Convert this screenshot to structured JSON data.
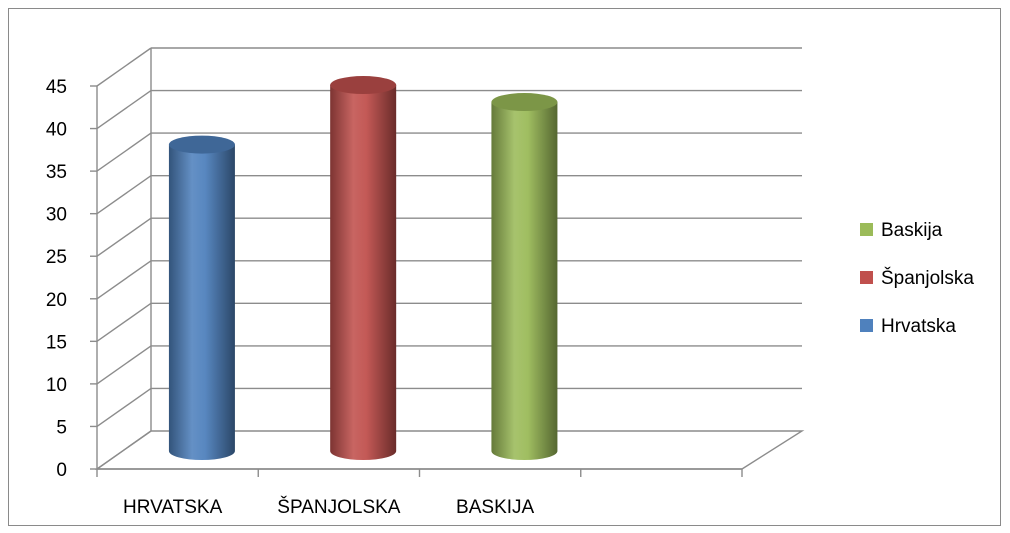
{
  "chart_data": {
    "type": "bar",
    "categories": [
      "HRVATSKA",
      "ŠPANJOLSKA",
      "BASKIJA"
    ],
    "series": [
      {
        "name": "Hrvatska",
        "category": "HRVATSKA",
        "value": 36,
        "color": "#4f81bd"
      },
      {
        "name": "Španjolska",
        "category": "ŠPANJOLSKA",
        "value": 43,
        "color": "#c0504d"
      },
      {
        "name": "Baskija",
        "category": "BASKIJA",
        "value": 41,
        "color": "#9bbb59"
      }
    ],
    "ylim": [
      0,
      45
    ],
    "yticks": [
      "0",
      "5",
      "10",
      "15",
      "20",
      "25",
      "30",
      "35",
      "40",
      "45"
    ],
    "legend": [
      "Baskija",
      "Španjolska",
      "Hrvatska"
    ],
    "legend_position": "right",
    "grid": true,
    "style": "3d-cylinder"
  }
}
